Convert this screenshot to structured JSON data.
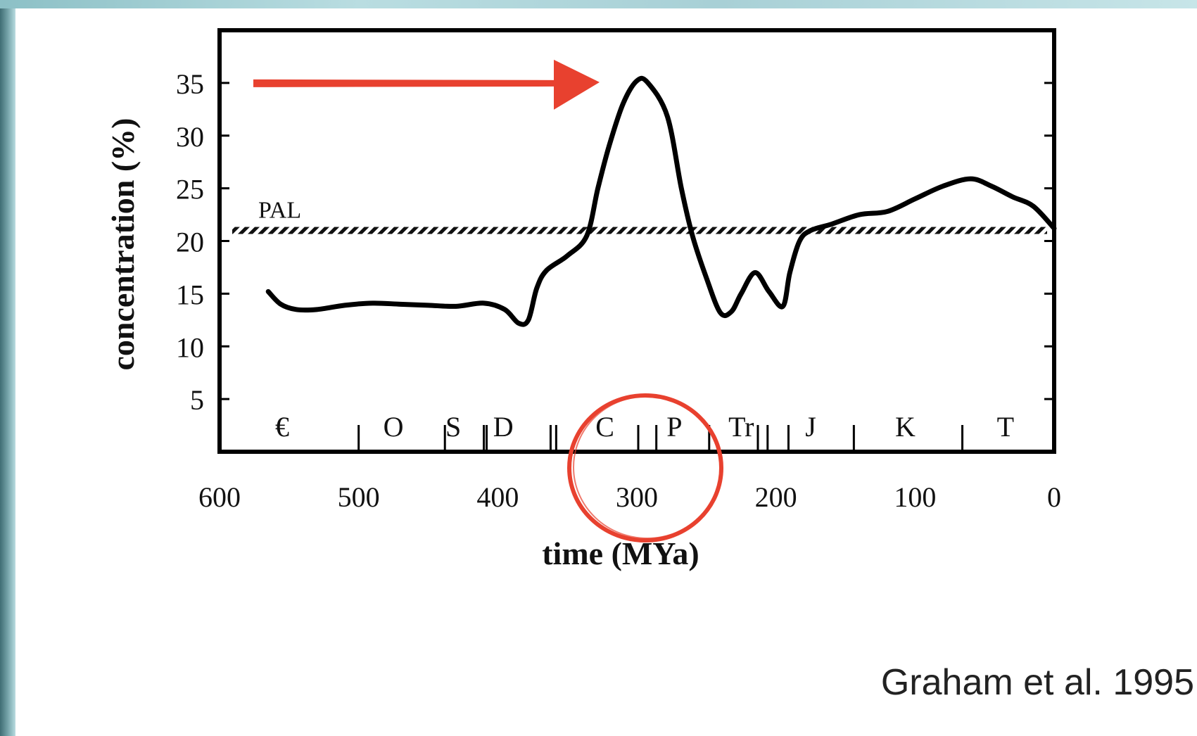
{
  "chart_data": {
    "type": "line",
    "title": "",
    "xlabel": "time (MYa)",
    "ylabel": "concentration (%)",
    "xlim": [
      600,
      0
    ],
    "ylim": [
      0,
      40
    ],
    "x_ticks": [
      600,
      500,
      400,
      300,
      200,
      100,
      0
    ],
    "x_tick_labels": [
      "600",
      "500",
      "400",
      "300",
      "200",
      "100",
      "0"
    ],
    "y_ticks": [
      5,
      10,
      15,
      20,
      25,
      30,
      35
    ],
    "y_tick_labels": [
      "5",
      "10",
      "15",
      "20",
      "25",
      "30",
      "35"
    ],
    "series": [
      {
        "x": [
          565,
          556,
          545,
          530,
          510,
          490,
          470,
          450,
          430,
          410,
          395,
          385,
          378,
          372,
          365,
          350,
          336,
          328,
          320,
          310,
          300,
          292,
          278,
          268,
          260,
          250,
          240,
          232,
          225,
          215,
          205,
          195,
          190,
          183,
          175,
          160,
          140,
          120,
          100,
          80,
          60,
          45,
          30,
          15,
          0
        ],
        "y": [
          15.2,
          14,
          13.5,
          13.5,
          13.9,
          14.1,
          14,
          13.9,
          13.8,
          14.1,
          13.5,
          12.2,
          12.5,
          15.5,
          17.2,
          18.6,
          20.5,
          25,
          29,
          33,
          35.2,
          35,
          31.8,
          25,
          20.5,
          16.5,
          13.2,
          13.3,
          15,
          17,
          15.2,
          13.8,
          17,
          20,
          21,
          21.6,
          22.5,
          22.8,
          24,
          25.2,
          25.9,
          25.2,
          24.2,
          23.3,
          21.2
        ]
      }
    ],
    "reference_line": {
      "label": "PAL",
      "y": 21
    },
    "periods": [
      {
        "label": "€",
        "x": 555
      },
      {
        "label": "O",
        "x": 475
      },
      {
        "label": "S",
        "x": 432
      },
      {
        "label": "D",
        "x": 396
      },
      {
        "label": "C",
        "x": 323
      },
      {
        "label": "P",
        "x": 273
      },
      {
        "label": "Tr",
        "x": 225
      },
      {
        "label": "J",
        "x": 175
      },
      {
        "label": "K",
        "x": 107
      },
      {
        "label": "T",
        "x": 35
      }
    ],
    "boundaries": [
      500,
      438,
      410,
      408,
      362,
      358,
      299,
      286,
      248,
      213,
      206,
      191,
      144,
      66
    ],
    "annotations": [
      {
        "kind": "arrow",
        "color": "#e8412f",
        "pointing_at_y": 35
      },
      {
        "kind": "circle",
        "color": "#e8412f",
        "highlight_x": 300
      }
    ],
    "grid": false,
    "line_color": "#000000"
  },
  "citation": "Graham et al. 1995"
}
